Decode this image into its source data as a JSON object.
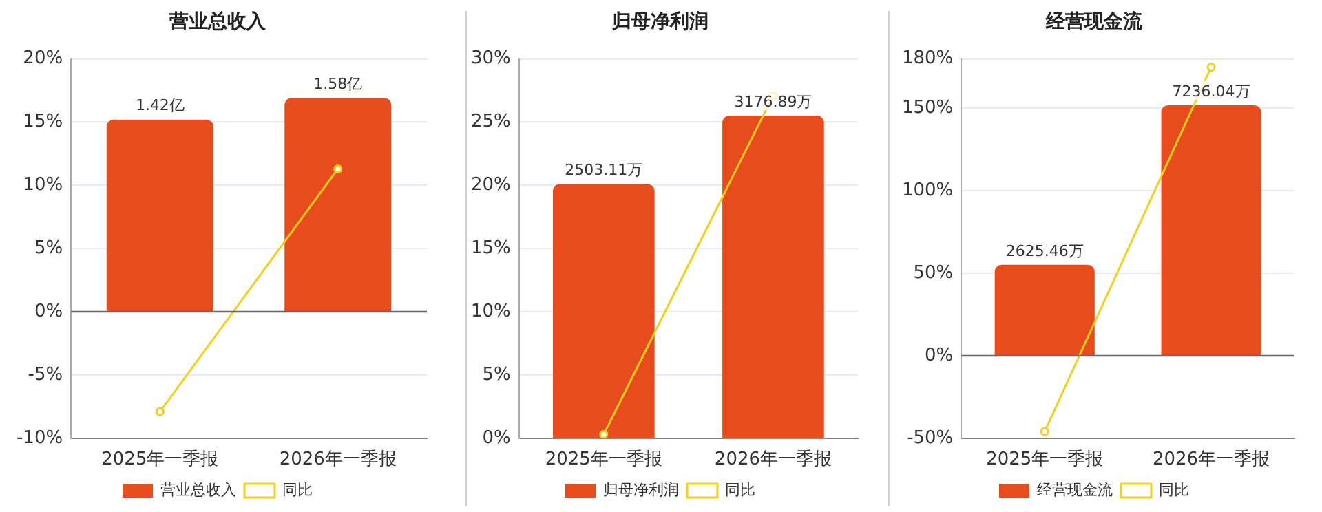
{
  "chart_data": [
    {
      "type": "bar",
      "title": "营业总收入",
      "categories": [
        "2025年一季报",
        "2026年一季报"
      ],
      "series": [
        {
          "name": "营业总收入",
          "axis": "y2",
          "color": "#e84c1c",
          "values": [
            1.42,
            1.58
          ],
          "value_labels": [
            "1.42亿",
            "1.58亿"
          ]
        },
        {
          "name": "同比",
          "type": "line",
          "color": "#f5cf1a",
          "values": [
            -7.9,
            11.3
          ]
        }
      ],
      "ylim": [
        -10,
        20
      ],
      "yticks": [
        {
          "value": -10,
          "label": "-10%"
        },
        {
          "value": -5,
          "label": "-5%"
        },
        {
          "value": 0,
          "label": "0%"
        },
        {
          "value": 5,
          "label": "5%"
        },
        {
          "value": 10,
          "label": "10%"
        },
        {
          "value": 15,
          "label": "15%"
        },
        {
          "value": 20,
          "label": "20%"
        }
      ],
      "y2lim": [
        -0.934,
        1.868
      ],
      "tick_labels": "xy",
      "grid": "y",
      "legend": "bottom",
      "marker": "circle"
    },
    {
      "type": "bar",
      "title": "归母净利润",
      "categories": [
        "2025年一季报",
        "2026年一季报"
      ],
      "series": [
        {
          "name": "归母净利润",
          "axis": "y2",
          "color": "#e84c1c",
          "values": [
            2503.11,
            3176.89
          ],
          "value_labels": [
            "2503.11万",
            "3176.89万"
          ]
        },
        {
          "name": "同比",
          "type": "line",
          "color": "#f5cf1a",
          "values": [
            0.3,
            27.1
          ]
        }
      ],
      "ylim": [
        0,
        30
      ],
      "yticks": [
        {
          "value": 0,
          "label": "0%"
        },
        {
          "value": 5,
          "label": "5%"
        },
        {
          "value": 10,
          "label": "10%"
        },
        {
          "value": 15,
          "label": "15%"
        },
        {
          "value": 20,
          "label": "20%"
        },
        {
          "value": 25,
          "label": "25%"
        },
        {
          "value": 30,
          "label": "30%"
        }
      ],
      "y2lim": [
        0,
        3736
      ],
      "tick_labels": "xy",
      "grid": "y",
      "legend": "bottom",
      "marker": "circle"
    },
    {
      "type": "bar",
      "title": "经营现金流",
      "categories": [
        "2025年一季报",
        "2026年一季报"
      ],
      "series": [
        {
          "name": "经营现金流",
          "axis": "y2",
          "color": "#e84c1c",
          "values": [
            2625.46,
            7236.04
          ],
          "value_labels": [
            "2625.46万",
            "7236.04万"
          ]
        },
        {
          "name": "同比",
          "type": "line",
          "color": "#f5cf1a",
          "values": [
            -46,
            175
          ]
        }
      ],
      "ylim": [
        -50,
        180
      ],
      "yticks": [
        {
          "value": -50,
          "label": "-50%"
        },
        {
          "value": 0,
          "label": "0%"
        },
        {
          "value": 50,
          "label": "50%"
        },
        {
          "value": 100,
          "label": "100%"
        },
        {
          "value": 150,
          "label": "150%"
        },
        {
          "value": 180,
          "label": "180%"
        }
      ],
      "y2lim": [
        -2382,
        8574
      ],
      "tick_labels": "xy",
      "grid": "y",
      "legend": "bottom",
      "marker": "circle"
    }
  ]
}
